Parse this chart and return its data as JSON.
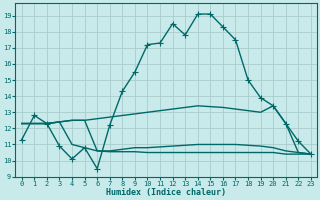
{
  "xlabel": "Humidex (Indice chaleur)",
  "xlim": [
    -0.5,
    23.5
  ],
  "ylim": [
    9,
    19.8
  ],
  "yticks": [
    9,
    10,
    11,
    12,
    13,
    14,
    15,
    16,
    17,
    18,
    19
  ],
  "xticks": [
    0,
    1,
    2,
    3,
    4,
    5,
    6,
    7,
    8,
    9,
    10,
    11,
    12,
    13,
    14,
    15,
    16,
    17,
    18,
    19,
    20,
    21,
    22,
    23
  ],
  "bg_color": "#c8eaea",
  "grid_color": "#aacccc",
  "line_color": "#006868",
  "lines": [
    {
      "x": [
        0,
        1,
        2,
        3,
        4,
        5,
        6,
        7,
        8,
        9,
        10,
        11,
        12,
        13,
        14,
        15,
        16,
        17,
        18,
        19,
        20,
        21,
        22,
        23
      ],
      "y": [
        11.3,
        12.8,
        12.3,
        10.9,
        10.1,
        10.8,
        9.5,
        12.2,
        14.3,
        15.5,
        17.2,
        17.3,
        18.5,
        17.8,
        19.1,
        19.1,
        18.3,
        17.5,
        15.0,
        13.9,
        13.4,
        12.3,
        11.2,
        10.4
      ],
      "marker": "+",
      "linewidth": 1.0,
      "markersize": 4
    },
    {
      "x": [
        0,
        1,
        2,
        3,
        4,
        5,
        6,
        7,
        8,
        9,
        10,
        11,
        12,
        13,
        14,
        15,
        16,
        17,
        18,
        19,
        20,
        21,
        22,
        23
      ],
      "y": [
        12.3,
        12.3,
        12.3,
        12.4,
        12.5,
        12.5,
        12.6,
        12.7,
        12.8,
        12.9,
        13.0,
        13.1,
        13.2,
        13.3,
        13.4,
        13.35,
        13.3,
        13.2,
        13.1,
        13.0,
        13.4,
        12.3,
        10.5,
        10.4
      ],
      "marker": null,
      "linewidth": 1.0,
      "markersize": 0
    },
    {
      "x": [
        0,
        1,
        2,
        3,
        4,
        5,
        6,
        7,
        8,
        9,
        10,
        11,
        12,
        13,
        14,
        15,
        16,
        17,
        18,
        19,
        20,
        21,
        22,
        23
      ],
      "y": [
        12.3,
        12.3,
        12.3,
        12.4,
        12.5,
        12.5,
        10.6,
        10.6,
        10.7,
        10.8,
        10.8,
        10.85,
        10.9,
        10.95,
        11.0,
        11.0,
        11.0,
        11.0,
        10.95,
        10.9,
        10.8,
        10.6,
        10.5,
        10.4
      ],
      "marker": null,
      "linewidth": 1.0,
      "markersize": 0
    },
    {
      "x": [
        0,
        1,
        2,
        3,
        4,
        5,
        6,
        7,
        8,
        9,
        10,
        11,
        12,
        13,
        14,
        15,
        16,
        17,
        18,
        19,
        20,
        21,
        22,
        23
      ],
      "y": [
        12.3,
        12.3,
        12.3,
        12.4,
        11.0,
        10.8,
        10.6,
        10.55,
        10.55,
        10.55,
        10.5,
        10.5,
        10.5,
        10.5,
        10.5,
        10.5,
        10.5,
        10.5,
        10.5,
        10.5,
        10.5,
        10.4,
        10.4,
        10.4
      ],
      "marker": null,
      "linewidth": 1.0,
      "markersize": 0
    }
  ]
}
